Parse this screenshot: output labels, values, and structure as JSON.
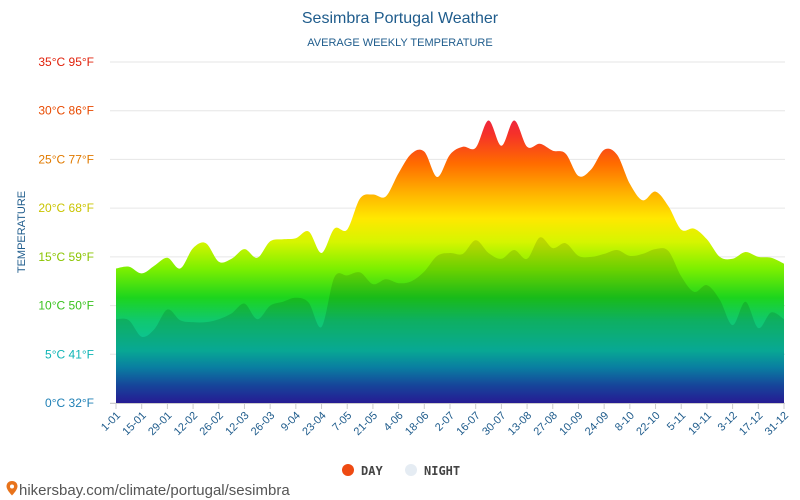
{
  "chart_data": {
    "type": "area",
    "title": "Sesimbra Portugal Weather",
    "subtitle": "AVERAGE WEEKLY TEMPERATURE",
    "ylabel": "TEMPERATURE",
    "ylim": [
      0,
      35
    ],
    "y_ticks": [
      {
        "value": 0,
        "label": "0°C 32°F",
        "color": "#1e7fb5"
      },
      {
        "value": 5,
        "label": "5°C 41°F",
        "color": "#0fb5b5"
      },
      {
        "value": 10,
        "label": "10°C 50°F",
        "color": "#39c21f"
      },
      {
        "value": 15,
        "label": "15°C 59°F",
        "color": "#8ac400"
      },
      {
        "value": 20,
        "label": "20°C 68°F",
        "color": "#c9c400"
      },
      {
        "value": 25,
        "label": "25°C 77°F",
        "color": "#e07a00"
      },
      {
        "value": 30,
        "label": "30°C 86°F",
        "color": "#e84a00"
      },
      {
        "value": 35,
        "label": "35°C 95°F",
        "color": "#e0200a"
      }
    ],
    "x_tick_labels": [
      "1-01",
      "15-01",
      "29-01",
      "12-02",
      "26-02",
      "12-03",
      "26-03",
      "9-04",
      "23-04",
      "7-05",
      "21-05",
      "4-06",
      "18-06",
      "2-07",
      "16-07",
      "30-07",
      "13-08",
      "27-08",
      "10-09",
      "24-09",
      "8-10",
      "22-10",
      "5-11",
      "19-11",
      "3-12",
      "17-12",
      "31-12"
    ],
    "series": [
      {
        "name": "DAY",
        "color": "#ee4a12",
        "values": [
          13.8,
          14.0,
          13.3,
          14.1,
          14.9,
          13.8,
          15.9,
          16.4,
          14.5,
          14.8,
          15.8,
          14.9,
          16.6,
          16.8,
          16.9,
          17.6,
          15.4,
          17.9,
          17.8,
          21.0,
          21.4,
          21.2,
          23.6,
          25.6,
          25.8,
          23.2,
          25.5,
          26.3,
          26.2,
          29.0,
          26.4,
          29.0,
          26.3,
          26.6,
          25.9,
          25.6,
          23.3,
          24.0,
          26.0,
          25.5,
          22.5,
          20.8,
          21.7,
          20.2,
          17.8,
          17.9,
          16.8,
          15.0,
          14.8,
          15.5,
          15.0,
          14.9,
          14.3
        ]
      },
      {
        "name": "NIGHT",
        "color": "#e5ecf3",
        "values": [
          8.6,
          8.5,
          6.8,
          7.6,
          9.6,
          8.5,
          8.3,
          8.3,
          8.6,
          9.2,
          10.2,
          8.6,
          10.0,
          10.4,
          10.8,
          10.3,
          7.8,
          12.9,
          13.1,
          13.4,
          12.2,
          12.7,
          12.3,
          12.5,
          13.5,
          15.1,
          15.4,
          15.3,
          16.7,
          15.4,
          14.8,
          15.7,
          14.8,
          17.0,
          15.9,
          16.4,
          15.1,
          15.0,
          15.3,
          15.7,
          15.1,
          15.3,
          15.8,
          15.6,
          13.0,
          11.4,
          12.1,
          10.6,
          8.0,
          10.4,
          7.7,
          9.3,
          8.6
        ]
      }
    ],
    "legend_position": "bottom-center",
    "grid": true
  },
  "footer": {
    "source_text": "hikersbay.com/climate/portugal/sesimbra",
    "pin_color": "#e8731b"
  }
}
